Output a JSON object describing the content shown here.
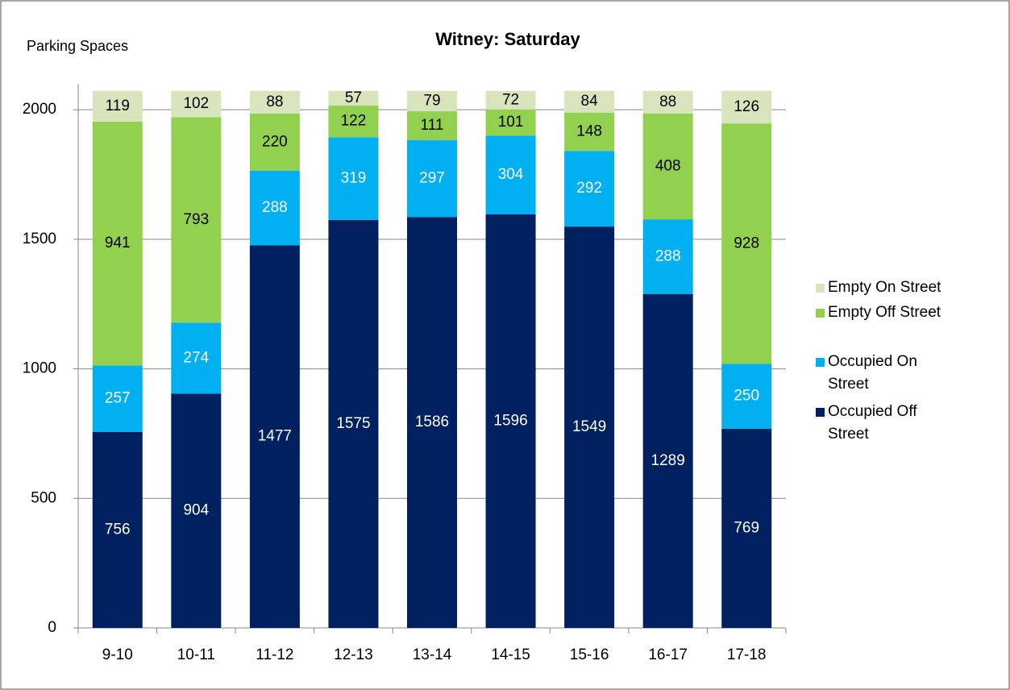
{
  "chart_data": {
    "type": "stacked_bar",
    "title": "Witney: Saturday",
    "y_label": "Parking Spaces",
    "categories": [
      "9-10",
      "10-11",
      "11-12",
      "12-13",
      "13-14",
      "14-15",
      "15-16",
      "16-17",
      "17-18"
    ],
    "series": [
      {
        "name": "Occupied Off Street",
        "color": "#002060",
        "label_color": "#ffffff",
        "values": [
          756,
          904,
          1477,
          1575,
          1586,
          1596,
          1549,
          1289,
          769
        ]
      },
      {
        "name": "Occupied On Street",
        "color": "#00b0f0",
        "label_color": "#ffffff",
        "values": [
          257,
          274,
          288,
          319,
          297,
          304,
          292,
          288,
          250
        ]
      },
      {
        "name": "Empty Off Street",
        "color": "#92d050",
        "label_color": "#000000",
        "values": [
          941,
          793,
          220,
          122,
          111,
          101,
          148,
          408,
          928
        ]
      },
      {
        "name": "Empty On Street",
        "color": "#d8e4bc",
        "label_color": "#000000",
        "values": [
          119,
          102,
          88,
          57,
          79,
          72,
          84,
          88,
          126
        ]
      }
    ],
    "ylim": [
      0,
      2100
    ],
    "yticks": [
      0,
      500,
      1000,
      1500,
      2000
    ],
    "grid": true,
    "legend": "right"
  }
}
